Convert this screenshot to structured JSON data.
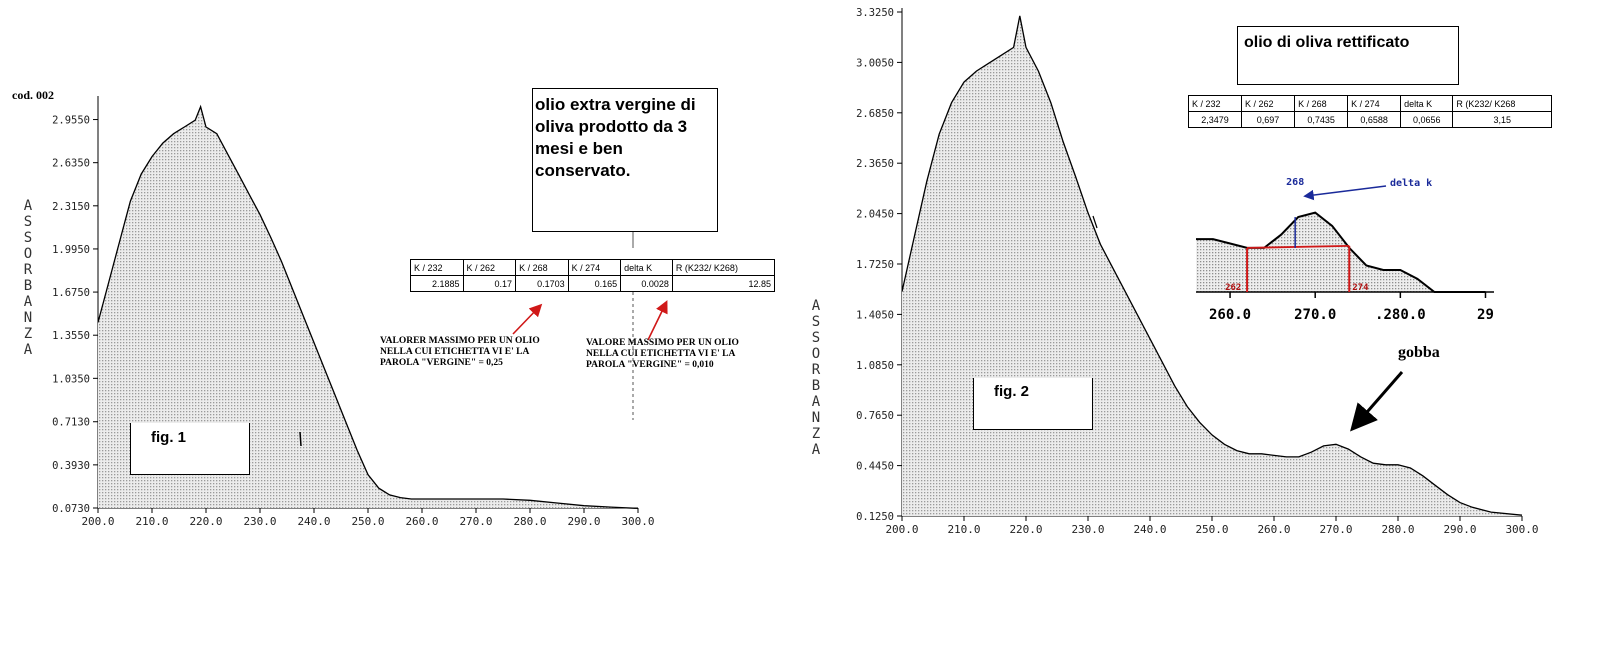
{
  "chart_data": [
    {
      "type": "area",
      "title": "olio extra vergine di oliva prodotto da 3 mesi e ben conservato.",
      "code": "cod. 002",
      "figure_label": "fig. 1",
      "ylabel": "ASSORBANZA",
      "xlabel": "",
      "xlim": [
        200,
        300
      ],
      "ylim": [
        0.073,
        3.1
      ],
      "x_ticks": [
        "200.0",
        "210.0",
        "220.0",
        "230.0",
        "240.0",
        "250.0",
        "260.0",
        "270.0",
        "280.0",
        "290.0",
        "300.0"
      ],
      "y_ticks": [
        "0.0730",
        "0.3930",
        "0.7130",
        "1.0350",
        "1.3550",
        "1.6750",
        "1.9950",
        "2.3150",
        "2.6350",
        "2.9550"
      ],
      "series": [
        {
          "x": [
            200,
            202,
            204,
            206,
            208,
            210,
            212,
            214,
            216,
            218,
            219,
            220,
            222,
            224,
            226,
            228,
            230,
            232,
            234,
            236,
            238,
            240,
            242,
            244,
            246,
            248,
            250,
            252,
            254,
            256,
            258,
            260,
            265,
            270,
            275,
            280,
            285,
            290,
            295,
            300
          ],
          "y": [
            1.45,
            1.75,
            2.05,
            2.35,
            2.55,
            2.68,
            2.78,
            2.85,
            2.9,
            2.95,
            3.05,
            2.9,
            2.85,
            2.7,
            2.55,
            2.4,
            2.25,
            2.08,
            1.9,
            1.7,
            1.5,
            1.3,
            1.1,
            0.9,
            0.7,
            0.5,
            0.32,
            0.22,
            0.17,
            0.15,
            0.14,
            0.14,
            0.14,
            0.14,
            0.14,
            0.13,
            0.11,
            0.09,
            0.08,
            0.07
          ]
        }
      ],
      "table": {
        "headers": [
          "K / 232",
          "K / 262",
          "K / 268",
          "K / 274",
          "delta K",
          "R (K232/ K268)"
        ],
        "values": [
          "2.1885",
          "0.17",
          "0.1703",
          "0.165",
          "0.0028",
          "12.85"
        ]
      },
      "annotations": [
        "VALORER MASSIMO PER UN OLIO NELLA CUI ETICHETTA VI E' LA PAROLA \"VERGINE\" = 0,25",
        "VALORE MASSIMO PER UN OLIO NELLA CUI ETICHETTA VI E' LA PAROLA \"VERGINE\" = 0,010"
      ],
      "grid": true
    },
    {
      "type": "area",
      "title": "olio di oliva rettificato",
      "figure_label": "fig. 2",
      "ylabel": "ASSORBANZA",
      "xlabel": "",
      "xlim": [
        200,
        300
      ],
      "ylim": [
        0.125,
        3.325
      ],
      "x_ticks": [
        "200.0",
        "210.0",
        "220.0",
        "230.0",
        "240.0",
        "250.0",
        "260.0",
        "270.0",
        "280.0",
        "290.0",
        "300.0"
      ],
      "y_ticks": [
        "0.1250",
        "0.4450",
        "0.7650",
        "1.0850",
        "1.4050",
        "1.7250",
        "2.0450",
        "2.3650",
        "2.6850",
        "3.0050",
        "3.3250"
      ],
      "series": [
        {
          "x": [
            200,
            202,
            204,
            206,
            208,
            210,
            212,
            214,
            216,
            218,
            219,
            220,
            222,
            224,
            226,
            228,
            230,
            232,
            234,
            236,
            238,
            240,
            242,
            244,
            246,
            248,
            250,
            252,
            254,
            256,
            258,
            260,
            262,
            264,
            266,
            268,
            270,
            272,
            274,
            276,
            278,
            280,
            282,
            284,
            286,
            288,
            290,
            292,
            295,
            300
          ],
          "y": [
            1.55,
            1.9,
            2.25,
            2.55,
            2.75,
            2.88,
            2.95,
            3.0,
            3.05,
            3.1,
            3.3,
            3.1,
            2.95,
            2.75,
            2.5,
            2.28,
            2.05,
            1.85,
            1.7,
            1.55,
            1.4,
            1.25,
            1.1,
            0.95,
            0.82,
            0.72,
            0.64,
            0.58,
            0.54,
            0.52,
            0.52,
            0.51,
            0.5,
            0.5,
            0.53,
            0.57,
            0.58,
            0.55,
            0.5,
            0.46,
            0.45,
            0.45,
            0.43,
            0.38,
            0.32,
            0.26,
            0.21,
            0.18,
            0.15,
            0.13
          ]
        }
      ],
      "table": {
        "headers": [
          "K / 232",
          "K / 262",
          "K / 268",
          "K / 274",
          "delta K",
          "R (K232/ K268"
        ],
        "values": [
          "2,3479",
          "0,697",
          "0,7435",
          "0,6588",
          "0,0656",
          "3,15"
        ]
      },
      "inset": {
        "x_ticks": [
          "260.0",
          "270.0",
          ".280.0",
          "29"
        ],
        "markers": [
          "262",
          "268",
          "274"
        ],
        "delta_label": "delta k"
      },
      "annotations": [
        "gobba"
      ],
      "grid": true
    }
  ],
  "colors": {
    "fill": "#d4d4d4",
    "line": "#000000",
    "marker_red": "#d01818",
    "annotation_blue": "#1a2a9a",
    "annotation_red": "#b01010"
  }
}
